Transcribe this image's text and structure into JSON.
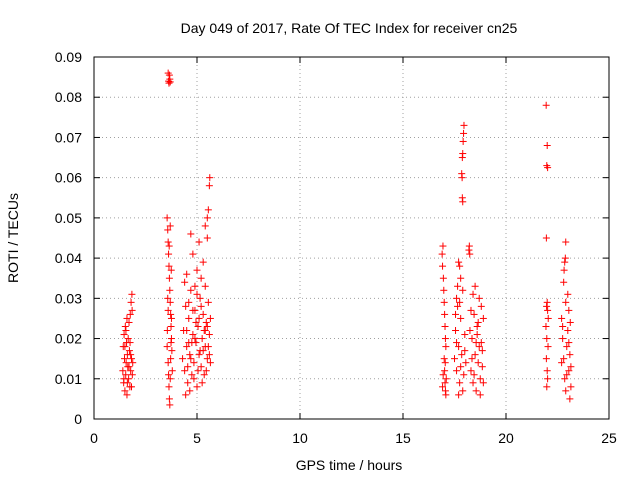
{
  "chart_data": {
    "type": "scatter",
    "title": "Day 049 of 2017, Rate Of TEC Index for receiver cn25",
    "xlabel": "GPS time / hours",
    "ylabel": "ROTI / TECUs",
    "xlim": [
      0,
      25
    ],
    "ylim": [
      0,
      0.09
    ],
    "xticks": [
      0,
      5,
      10,
      15,
      20,
      25
    ],
    "yticks": [
      0,
      0.01,
      0.02,
      0.03,
      0.04,
      0.05,
      0.06,
      0.07,
      0.08,
      0.09
    ],
    "xtick_labels": [
      "0",
      "5",
      "10",
      "15",
      "20",
      "25"
    ],
    "ytick_labels": [
      "0",
      "0.01",
      "0.02",
      "0.03",
      "0.04",
      "0.05",
      "0.06",
      "0.07",
      "0.08",
      "0.09"
    ],
    "grid": true,
    "marker": "+",
    "colors": {
      "series": "#ff0000",
      "frame": "#000000",
      "grid": "#a0a0a0"
    },
    "series": [
      {
        "points": [
          [
            1.4,
            0.012
          ],
          [
            1.42,
            0.018
          ],
          [
            1.44,
            0.009
          ],
          [
            1.46,
            0.021
          ],
          [
            1.48,
            0.015
          ],
          [
            1.5,
            0.007
          ],
          [
            1.52,
            0.023
          ],
          [
            1.54,
            0.011
          ],
          [
            1.56,
            0.014
          ],
          [
            1.58,
            0.019
          ],
          [
            1.6,
            0.006
          ],
          [
            1.62,
            0.016
          ],
          [
            1.64,
            0.013
          ],
          [
            1.66,
            0.02
          ],
          [
            1.68,
            0.01
          ],
          [
            1.7,
            0.024
          ],
          [
            1.72,
            0.017
          ],
          [
            1.74,
            0.008
          ],
          [
            1.76,
            0.026
          ],
          [
            1.78,
            0.012
          ],
          [
            1.8,
            0.029
          ],
          [
            1.82,
            0.015
          ],
          [
            1.84,
            0.031
          ],
          [
            1.86,
            0.011
          ],
          [
            1.88,
            0.014
          ],
          [
            1.5,
            0.018
          ],
          [
            1.55,
            0.022
          ],
          [
            1.62,
            0.009
          ],
          [
            1.7,
            0.013
          ],
          [
            1.78,
            0.016
          ],
          [
            1.85,
            0.027
          ],
          [
            1.45,
            0.01
          ],
          [
            1.6,
            0.025
          ],
          [
            1.75,
            0.019
          ],
          [
            1.82,
            0.008
          ],
          [
            3.6,
            0.086
          ],
          [
            3.62,
            0.084
          ],
          [
            3.64,
            0.0835
          ],
          [
            3.66,
            0.0855
          ],
          [
            3.68,
            0.0845
          ],
          [
            3.7,
            0.0838
          ],
          [
            3.55,
            0.05
          ],
          [
            3.58,
            0.047
          ],
          [
            3.6,
            0.044
          ],
          [
            3.62,
            0.041
          ],
          [
            3.64,
            0.038
          ],
          [
            3.66,
            0.035
          ],
          [
            3.68,
            0.032
          ],
          [
            3.7,
            0.029
          ],
          [
            3.72,
            0.026
          ],
          [
            3.74,
            0.023
          ],
          [
            3.76,
            0.02
          ],
          [
            3.78,
            0.017
          ],
          [
            3.6,
            0.014
          ],
          [
            3.62,
            0.011
          ],
          [
            3.64,
            0.008
          ],
          [
            3.66,
            0.005
          ],
          [
            3.68,
            0.0035
          ],
          [
            3.7,
            0.01
          ],
          [
            3.72,
            0.015
          ],
          [
            3.74,
            0.019
          ],
          [
            3.76,
            0.025
          ],
          [
            3.58,
            0.03
          ],
          [
            3.56,
            0.022
          ],
          [
            3.6,
            0.027
          ],
          [
            3.65,
            0.043
          ],
          [
            3.7,
            0.048
          ],
          [
            3.55,
            0.018
          ],
          [
            3.8,
            0.012
          ],
          [
            3.75,
            0.037
          ],
          [
            4.3,
            0.015
          ],
          [
            4.35,
            0.022
          ],
          [
            4.4,
            0.012
          ],
          [
            4.45,
            0.028
          ],
          [
            4.5,
            0.018
          ],
          [
            4.55,
            0.009
          ],
          [
            4.6,
            0.025
          ],
          [
            4.65,
            0.016
          ],
          [
            4.7,
            0.032
          ],
          [
            4.75,
            0.011
          ],
          [
            4.8,
            0.021
          ],
          [
            4.85,
            0.014
          ],
          [
            4.9,
            0.027
          ],
          [
            4.95,
            0.019
          ],
          [
            5.0,
            0.008
          ],
          [
            5.05,
            0.023
          ],
          [
            5.1,
            0.016
          ],
          [
            5.15,
            0.03
          ],
          [
            5.2,
            0.013
          ],
          [
            5.25,
            0.02
          ],
          [
            5.3,
            0.026
          ],
          [
            5.35,
            0.011
          ],
          [
            5.4,
            0.018
          ],
          [
            5.45,
            0.024
          ],
          [
            5.5,
            0.015
          ],
          [
            5.55,
            0.029
          ],
          [
            5.6,
            0.021
          ],
          [
            5.65,
            0.014
          ],
          [
            4.4,
            0.034
          ],
          [
            4.5,
            0.036
          ],
          [
            4.6,
            0.029
          ],
          [
            4.7,
            0.046
          ],
          [
            4.8,
            0.041
          ],
          [
            4.9,
            0.033
          ],
          [
            5.0,
            0.037
          ],
          [
            5.1,
            0.044
          ],
          [
            5.2,
            0.035
          ],
          [
            5.3,
            0.039
          ],
          [
            5.4,
            0.048
          ],
          [
            5.5,
            0.05
          ],
          [
            5.55,
            0.052
          ],
          [
            5.6,
            0.058
          ],
          [
            5.62,
            0.06
          ],
          [
            5.5,
            0.045
          ],
          [
            5.4,
            0.033
          ],
          [
            4.45,
            0.006
          ],
          [
            4.55,
            0.013
          ],
          [
            4.65,
            0.007
          ],
          [
            4.75,
            0.019
          ],
          [
            4.85,
            0.01
          ],
          [
            4.95,
            0.024
          ],
          [
            5.05,
            0.012
          ],
          [
            5.15,
            0.017
          ],
          [
            5.25,
            0.009
          ],
          [
            5.35,
            0.022
          ],
          [
            5.45,
            0.012
          ],
          [
            5.55,
            0.018
          ],
          [
            5.65,
            0.025
          ],
          [
            4.5,
            0.022
          ],
          [
            4.7,
            0.015
          ],
          [
            4.9,
            0.02
          ],
          [
            5.1,
            0.025
          ],
          [
            5.3,
            0.017
          ],
          [
            5.5,
            0.023
          ],
          [
            4.6,
            0.019
          ],
          [
            4.8,
            0.027
          ],
          [
            5.0,
            0.031
          ],
          [
            5.2,
            0.028
          ],
          [
            5.4,
            0.022
          ],
          [
            5.6,
            0.016
          ],
          [
            16.9,
            0.041
          ],
          [
            16.92,
            0.038
          ],
          [
            16.94,
            0.043
          ],
          [
            16.96,
            0.035
          ],
          [
            16.98,
            0.032
          ],
          [
            17.0,
            0.029
          ],
          [
            17.02,
            0.026
          ],
          [
            17.04,
            0.023
          ],
          [
            17.06,
            0.02
          ],
          [
            17.08,
            0.018
          ],
          [
            17.0,
            0.015
          ],
          [
            17.02,
            0.012
          ],
          [
            17.04,
            0.009
          ],
          [
            17.06,
            0.007
          ],
          [
            17.08,
            0.006
          ],
          [
            16.95,
            0.011
          ],
          [
            17.05,
            0.014
          ],
          [
            16.92,
            0.008
          ],
          [
            17.1,
            0.01
          ],
          [
            17.5,
            0.015
          ],
          [
            17.55,
            0.022
          ],
          [
            17.6,
            0.012
          ],
          [
            17.65,
            0.028
          ],
          [
            17.7,
            0.018
          ],
          [
            17.75,
            0.009
          ],
          [
            17.8,
            0.025
          ],
          [
            17.85,
            0.016
          ],
          [
            17.9,
            0.032
          ],
          [
            17.95,
            0.011
          ],
          [
            18.0,
            0.021
          ],
          [
            18.05,
            0.014
          ],
          [
            17.7,
            0.039
          ],
          [
            17.75,
            0.038
          ],
          [
            17.8,
            0.035
          ],
          [
            17.6,
            0.03
          ],
          [
            17.65,
            0.033
          ],
          [
            17.85,
            0.061
          ],
          [
            17.87,
            0.06
          ],
          [
            17.88,
            0.065
          ],
          [
            17.9,
            0.066
          ],
          [
            17.92,
            0.069
          ],
          [
            17.94,
            0.071
          ],
          [
            17.96,
            0.073
          ],
          [
            17.88,
            0.055
          ],
          [
            17.9,
            0.054
          ],
          [
            17.6,
            0.019
          ],
          [
            17.7,
            0.006
          ],
          [
            17.8,
            0.013
          ],
          [
            17.9,
            0.007
          ],
          [
            18.0,
            0.017
          ],
          [
            17.55,
            0.026
          ],
          [
            17.75,
            0.029
          ],
          [
            18.2,
            0.042
          ],
          [
            18.22,
            0.043
          ],
          [
            18.24,
            0.041
          ],
          [
            18.3,
            0.012
          ],
          [
            18.35,
            0.02
          ],
          [
            18.4,
            0.009
          ],
          [
            18.45,
            0.026
          ],
          [
            18.5,
            0.016
          ],
          [
            18.55,
            0.007
          ],
          [
            18.6,
            0.023
          ],
          [
            18.65,
            0.014
          ],
          [
            18.7,
            0.03
          ],
          [
            18.75,
            0.01
          ],
          [
            18.8,
            0.019
          ],
          [
            18.85,
            0.013
          ],
          [
            18.9,
            0.025
          ],
          [
            18.3,
            0.027
          ],
          [
            18.4,
            0.031
          ],
          [
            18.5,
            0.033
          ],
          [
            18.6,
            0.021
          ],
          [
            18.7,
            0.018
          ],
          [
            18.8,
            0.028
          ],
          [
            18.35,
            0.015
          ],
          [
            18.45,
            0.011
          ],
          [
            18.55,
            0.019
          ],
          [
            18.65,
            0.024
          ],
          [
            18.75,
            0.006
          ],
          [
            18.85,
            0.017
          ],
          [
            18.25,
            0.022
          ],
          [
            18.9,
            0.009
          ],
          [
            21.95,
            0.078
          ],
          [
            22.0,
            0.068
          ],
          [
            21.98,
            0.063
          ],
          [
            22.02,
            0.0625
          ],
          [
            21.96,
            0.045
          ],
          [
            22.0,
            0.029
          ],
          [
            22.02,
            0.027
          ],
          [
            21.94,
            0.023
          ],
          [
            21.98,
            0.02
          ],
          [
            22.04,
            0.018
          ],
          [
            21.96,
            0.015
          ],
          [
            22.0,
            0.012
          ],
          [
            22.02,
            0.01
          ],
          [
            21.98,
            0.008
          ],
          [
            22.05,
            0.025
          ],
          [
            21.97,
            0.028
          ],
          [
            22.7,
            0.025
          ],
          [
            22.75,
            0.02
          ],
          [
            22.8,
            0.015
          ],
          [
            22.85,
            0.01
          ],
          [
            22.9,
            0.007
          ],
          [
            22.95,
            0.018
          ],
          [
            23.0,
            0.022
          ],
          [
            23.05,
            0.012
          ],
          [
            23.1,
            0.016
          ],
          [
            23.15,
            0.008
          ],
          [
            22.8,
            0.034
          ],
          [
            22.85,
            0.039
          ],
          [
            22.9,
            0.044
          ],
          [
            22.88,
            0.04
          ],
          [
            22.82,
            0.037
          ],
          [
            23.0,
            0.031
          ],
          [
            23.05,
            0.027
          ],
          [
            22.9,
            0.029
          ],
          [
            23.1,
            0.005
          ],
          [
            23.15,
            0.013
          ],
          [
            22.75,
            0.023
          ],
          [
            22.95,
            0.011
          ],
          [
            23.05,
            0.019
          ],
          [
            22.7,
            0.014
          ],
          [
            23.12,
            0.024
          ]
        ]
      }
    ]
  }
}
